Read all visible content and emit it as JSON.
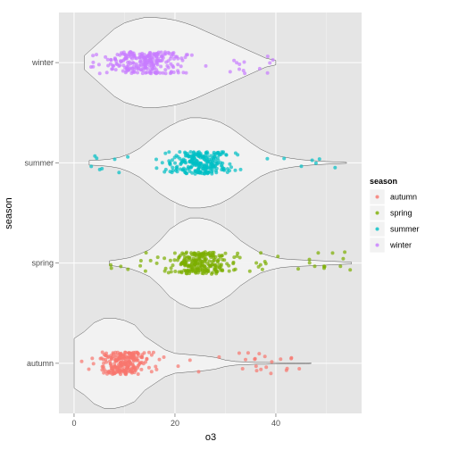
{
  "chart_data": {
    "type": "violin",
    "xlabel": "o3",
    "ylabel": "season",
    "xlim": [
      -3,
      57
    ],
    "x_ticks": [
      0,
      20,
      40
    ],
    "categories": [
      "autumn",
      "spring",
      "summer",
      "winter"
    ],
    "grid": true,
    "jitter_points": true,
    "legend": {
      "title": "season",
      "position": "right",
      "entries": [
        "autumn",
        "spring",
        "summer",
        "winter"
      ]
    },
    "series": [
      {
        "name": "autumn",
        "color": "#f8766d",
        "min": 0,
        "max": 47,
        "median": 10,
        "q1": 6,
        "q3": 14,
        "density": [
          [
            0,
            0.55
          ],
          [
            2,
            0.7
          ],
          [
            4,
            0.9
          ],
          [
            6,
            1.0
          ],
          [
            8,
            1.0
          ],
          [
            10,
            0.95
          ],
          [
            12,
            0.85
          ],
          [
            14,
            0.6
          ],
          [
            16,
            0.45
          ],
          [
            18,
            0.3
          ],
          [
            20,
            0.22
          ],
          [
            22,
            0.2
          ],
          [
            24,
            0.18
          ],
          [
            26,
            0.16
          ],
          [
            28,
            0.13
          ],
          [
            30,
            0.07
          ],
          [
            32,
            0.04
          ],
          [
            34,
            0.03
          ],
          [
            36,
            0.02
          ],
          [
            38,
            0.02
          ],
          [
            40,
            0.015
          ],
          [
            42,
            0.01
          ],
          [
            44,
            0.01
          ],
          [
            46,
            0.01
          ],
          [
            47,
            0.005
          ]
        ]
      },
      {
        "name": "spring",
        "color": "#7cae00",
        "min": 7,
        "max": 55,
        "median": 25,
        "q1": 20,
        "q3": 30,
        "density": [
          [
            7,
            0.05
          ],
          [
            9,
            0.08
          ],
          [
            11,
            0.12
          ],
          [
            13,
            0.2
          ],
          [
            15,
            0.3
          ],
          [
            17,
            0.5
          ],
          [
            19,
            0.75
          ],
          [
            21,
            0.9
          ],
          [
            23,
            1.0
          ],
          [
            25,
            1.0
          ],
          [
            27,
            0.95
          ],
          [
            29,
            0.85
          ],
          [
            31,
            0.7
          ],
          [
            33,
            0.5
          ],
          [
            35,
            0.35
          ],
          [
            37,
            0.22
          ],
          [
            39,
            0.15
          ],
          [
            41,
            0.1
          ],
          [
            43,
            0.08
          ],
          [
            45,
            0.07
          ],
          [
            47,
            0.06
          ],
          [
            49,
            0.05
          ],
          [
            51,
            0.04
          ],
          [
            53,
            0.03
          ],
          [
            55,
            0.02
          ]
        ]
      },
      {
        "name": "summer",
        "color": "#00bfc4",
        "min": 3,
        "max": 54,
        "median": 25,
        "q1": 20,
        "q3": 30,
        "density": [
          [
            3,
            0.05
          ],
          [
            5,
            0.06
          ],
          [
            7,
            0.08
          ],
          [
            9,
            0.12
          ],
          [
            11,
            0.2
          ],
          [
            13,
            0.32
          ],
          [
            15,
            0.5
          ],
          [
            17,
            0.68
          ],
          [
            19,
            0.82
          ],
          [
            21,
            0.93
          ],
          [
            23,
            1.0
          ],
          [
            25,
            1.0
          ],
          [
            27,
            0.97
          ],
          [
            29,
            0.9
          ],
          [
            31,
            0.78
          ],
          [
            33,
            0.62
          ],
          [
            35,
            0.45
          ],
          [
            37,
            0.3
          ],
          [
            39,
            0.2
          ],
          [
            41,
            0.14
          ],
          [
            43,
            0.1
          ],
          [
            45,
            0.07
          ],
          [
            47,
            0.05
          ],
          [
            50,
            0.03
          ],
          [
            54,
            0.01
          ]
        ]
      },
      {
        "name": "winter",
        "color": "#c77cff",
        "min": 2,
        "max": 40,
        "median": 14,
        "q1": 9,
        "q3": 22,
        "density": [
          [
            2,
            0.15
          ],
          [
            4,
            0.35
          ],
          [
            6,
            0.55
          ],
          [
            8,
            0.75
          ],
          [
            10,
            0.88
          ],
          [
            12,
            0.95
          ],
          [
            14,
            1.0
          ],
          [
            16,
            1.0
          ],
          [
            18,
            0.98
          ],
          [
            20,
            0.94
          ],
          [
            22,
            0.88
          ],
          [
            24,
            0.8
          ],
          [
            26,
            0.7
          ],
          [
            28,
            0.6
          ],
          [
            30,
            0.5
          ],
          [
            32,
            0.4
          ],
          [
            34,
            0.3
          ],
          [
            36,
            0.2
          ],
          [
            38,
            0.1
          ],
          [
            40,
            0.05
          ]
        ]
      }
    ]
  }
}
